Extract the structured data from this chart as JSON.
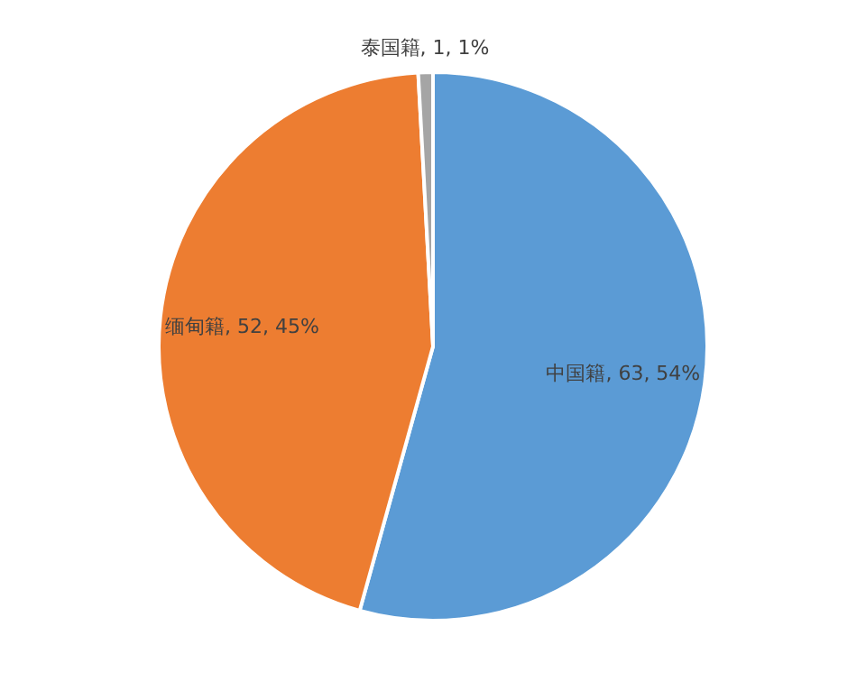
{
  "chart_data": {
    "type": "pie",
    "categories": [
      "中国籍",
      "缅甸籍",
      "泰国籍"
    ],
    "values": [
      63,
      52,
      1
    ],
    "colors": [
      "#5b9bd5",
      "#ed7d31",
      "#a5a5a5"
    ],
    "value_labels": [
      "63, 54%",
      "52, 45%",
      "1, 1%"
    ]
  }
}
